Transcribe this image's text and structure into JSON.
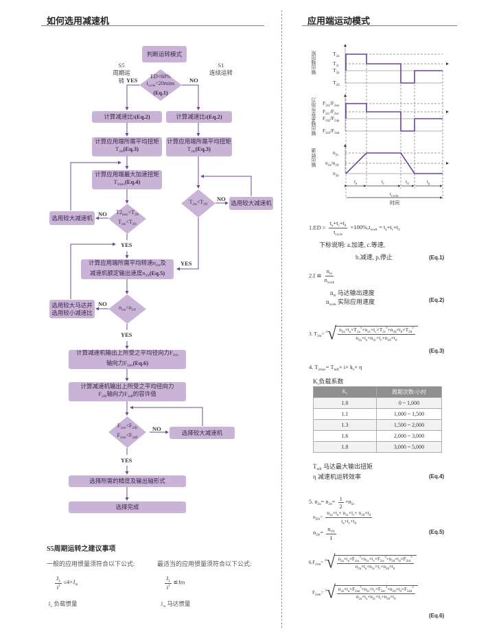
{
  "left": {
    "title": "如何选用减速机",
    "flow": {
      "start": "判断运转模式",
      "s5": "S5",
      "s5_label": "周期运转",
      "s1": "S1",
      "s1_label": "连续运转",
      "yes": "YES",
      "no": "NO",
      "d1": [
        [
          "ED<60%"
        ],
        [
          "t",
          {
            "sub": "cycle"
          },
          "<20mins"
        ],
        [
          {
            "b": "(Eq.1)"
          }
        ]
      ],
      "ratio_left": [
        "计算减速比i",
        {
          "b": "(Eq.2)"
        }
      ],
      "ratio_right": [
        "计算减速比i",
        {
          "b": "(Eq.2)"
        }
      ],
      "torque_left": [
        [
          "计算应用端所需平均扭矩"
        ],
        [
          "T",
          {
            "sub": "2m"
          },
          {
            "b": "(Eq.3)"
          }
        ]
      ],
      "torque_right": [
        [
          "计算应用端所需平均扭矩"
        ],
        [
          "T",
          {
            "sub": "2m"
          },
          {
            "b": "(Eq.3)"
          }
        ]
      ],
      "max_torque": [
        [
          "计算应用端最大加速扭矩"
        ],
        [
          "T",
          {
            "sub": "2max"
          },
          {
            "b": "(Eq.4)"
          }
        ]
      ],
      "d2": [
        [
          "T2",
          {
            "sub": "max"
          },
          "<T",
          {
            "sub": "2B"
          }
        ],
        [
          "T",
          {
            "sub": "2m"
          },
          "<T",
          {
            "sub": "2N"
          }
        ]
      ],
      "bigger_reducer": "选用较大减速机",
      "d_right": [
        [
          "T",
          {
            "sub": "2m"
          },
          "<T",
          {
            "sub": "2N"
          }
        ]
      ],
      "bigger_reducer_right": "选用较大减速机",
      "speed": [
        [
          "计算应用端所需平均转速n",
          {
            "sub": "2m"
          },
          "及"
        ],
        [
          "减速机额定输出速度n",
          {
            "sub": "2N"
          },
          {
            "b": "(Eq.5)"
          }
        ]
      ],
      "d3": [
        [
          "n",
          {
            "sub": "2m"
          },
          "<n",
          {
            "sub": "2N"
          }
        ]
      ],
      "bigger_motor": [
        [
          "选用较大马达并"
        ],
        [
          "选用较小减速比"
        ]
      ],
      "force": [
        [
          "计算减速机输出上所受之平均径向力F",
          {
            "sub": "2rm"
          }
        ],
        [
          "轴向力F",
          {
            "sub": "2am"
          },
          {
            "b": "(Eq.6)"
          }
        ]
      ],
      "allow": [
        [
          "计算减速机输出上所受之平均径向力"
        ],
        [
          "F",
          {
            "sub": "2rB"
          },
          "轴向力F",
          {
            "sub": "2aB"
          },
          "的容许值"
        ]
      ],
      "d4": [
        [
          "F",
          {
            "sub": "2rm"
          },
          "<F",
          {
            "sub": "2rB"
          }
        ],
        [
          "F",
          {
            "sub": "2am"
          },
          "<F",
          {
            "sub": "2aB"
          }
        ]
      ],
      "choose_bigger": "选择较大减速机",
      "precision": "选择所需的精度及输出轴形式",
      "done": "选择完成"
    },
    "s5": {
      "title": "S5周期运转之建议事项",
      "general": "一般的应用惯量须符合以下公式:",
      "optimal": "最适当的应用惯量须符合以下公式:",
      "f1_num": [
        "J",
        {
          "sub": "L"
        }
      ],
      "f1_den": [
        "i",
        {
          "sup": "2"
        }
      ],
      "f1_rest": [
        "≤4×J",
        {
          "sub": "m"
        }
      ],
      "f2_num": [
        "J",
        {
          "sub": "L"
        }
      ],
      "f2_den": [
        "i",
        {
          "sup": "2"
        }
      ],
      "f2_rest": [
        "≌Jm"
      ],
      "jl": [
        "J",
        {
          "sub": "L"
        },
        "  负载惯量"
      ],
      "jm": [
        "J",
        {
          "sub": "m"
        },
        "  马达惯量"
      ]
    }
  },
  "right": {
    "title": "应用端运动模式",
    "diagram": {
      "axis_torque": "输出轴扭矩",
      "axis_force": "输出轴承受作用力",
      "axis_speed": "输出转速",
      "t_levels": [
        [
          "T",
          {
            "sub": "2a"
          }
        ],
        [
          "T",
          {
            "sub": "2c"
          }
        ],
        [
          "T",
          {
            "sub": "2p"
          }
        ],
        [
          "T",
          {
            "sub": "2d"
          }
        ]
      ],
      "f_levels": [
        [
          "F",
          {
            "sub": "2ra"
          },
          "/F",
          {
            "sub": "2aa"
          }
        ],
        [
          "F",
          {
            "sub": "2rc"
          },
          "/F",
          {
            "sub": "2ac"
          }
        ],
        [
          "F",
          {
            "sub": "2rp"
          },
          "/F",
          {
            "sub": "2ap"
          }
        ],
        [
          "F",
          {
            "sub": "2rd"
          },
          "/F",
          {
            "sub": "2ad"
          }
        ]
      ],
      "n_levels": [
        [
          "n",
          {
            "sub": "2c"
          }
        ],
        [
          "n",
          {
            "sub": "2a"
          },
          "/n",
          {
            "sub": "2d"
          }
        ],
        [
          "n",
          {
            "sub": "2p"
          }
        ]
      ],
      "phases": [
        [
          "t",
          {
            "sub": "a"
          }
        ],
        [
          "t",
          {
            "sub": "c"
          }
        ],
        [
          "t",
          {
            "sub": "d"
          }
        ],
        [
          "t",
          {
            "sub": "p"
          }
        ]
      ],
      "cycle": [
        "t",
        {
          "sub": "cycle"
        }
      ],
      "time": "时间",
      "line_color": "#6a3fa0"
    },
    "eq1": {
      "pre": "1.ED = ",
      "num": [
        "t",
        {
          "sub": "a"
        },
        "+t",
        {
          "sub": "c"
        },
        "+t",
        {
          "sub": "d"
        }
      ],
      "den": [
        "t",
        {
          "sub": "cycle"
        }
      ],
      "post": [
        " ×100%,t",
        {
          "sub": "work"
        },
        " = t",
        {
          "sub": "a"
        },
        "+t",
        {
          "sub": "c"
        },
        "+t",
        {
          "sub": "d"
        }
      ],
      "note1": "下标说明: a.加速, c.等速,",
      "note2": "b.减速, p.停止",
      "tag": "(Eq.1)"
    },
    "eq2": {
      "pre": "2.I  ≌",
      "num": [
        "n",
        {
          "sub": "m"
        }
      ],
      "den": [
        "n",
        {
          "sub": "work"
        }
      ],
      "l1": [
        "n",
        {
          "sub": "m"
        },
        "  马达输出速度"
      ],
      "l2": [
        "n",
        {
          "sub": "work"
        },
        "  实际应用速度"
      ],
      "tag": "(Eq.2)"
    },
    "eq3": {
      "pre": [
        "3. T",
        {
          "sub": "2m"
        },
        "= ",
        {
          "sup": "3"
        }
      ],
      "num": [
        "n",
        {
          "sub": "2a"
        },
        "×t",
        {
          "sub": "a"
        },
        "×T",
        {
          "sub": "2a"
        },
        {
          "sup": "3"
        },
        "+n",
        {
          "sub": "2c"
        },
        "×t",
        {
          "sub": "c"
        },
        "×T",
        {
          "sub": "2c"
        },
        {
          "sup": "3"
        },
        "+n",
        {
          "sub": "2d"
        },
        "×t",
        {
          "sub": "d"
        },
        "×T",
        {
          "sub": "2d"
        },
        {
          "sup": "3"
        }
      ],
      "den": [
        "n",
        {
          "sub": "2a"
        },
        "×t",
        {
          "sub": "a"
        },
        "+n",
        {
          "sub": "2c"
        },
        "×t",
        {
          "sub": "c"
        },
        "+n",
        {
          "sub": "2d"
        },
        "×t",
        {
          "sub": "d"
        }
      ],
      "tag": "(Eq.3)"
    },
    "eq4": {
      "line": [
        "4. T",
        {
          "sub": "2max"
        },
        "= T",
        {
          "sub": "mB"
        },
        "× i× k",
        {
          "sub": "s"
        },
        "×  η"
      ],
      "table_caption": [
        "K",
        {
          "sub": "s"
        },
        "负载系数"
      ],
      "table_headers": [
        [
          "K",
          {
            "sub": "s"
          }
        ],
        [
          "周期次数/小时"
        ]
      ],
      "table_rows": [
        [
          "1.0",
          "0 ~ 1,000"
        ],
        [
          "1.1",
          "1,000  ~ 1,500"
        ],
        [
          "1.3",
          "1,500  ~ 2,000"
        ],
        [
          "1.6",
          "2,000 ~ 3,000"
        ],
        [
          "1.8",
          "3,000  ~ 5,000"
        ]
      ],
      "l1": [
        "T",
        {
          "sub": "mB"
        },
        "  马达最大输出扭矩"
      ],
      "l2": [
        "η    减速机运转效率"
      ],
      "tag": "(Eq.4)"
    },
    "eq5": {
      "l1_pre": [
        "5. n",
        {
          "sub": "2a"
        },
        "= n",
        {
          "sub": "2d"
        },
        "= "
      ],
      "l1_num": [
        "1"
      ],
      "l1_den": [
        "2"
      ],
      "l1_post": [
        "×n",
        {
          "sub": "2c"
        }
      ],
      "l2_pre": [
        "n",
        {
          "sub": "2m"
        },
        "= "
      ],
      "l2_num": [
        "n",
        {
          "sub": "2a"
        },
        "×t",
        {
          "sub": "a"
        },
        "+ n",
        {
          "sub": "2c"
        },
        "×t",
        {
          "sub": "c"
        },
        "+ n",
        {
          "sub": "2d"
        },
        "×t",
        {
          "sub": "d"
        }
      ],
      "l2_den": [
        "t",
        {
          "sub": "a"
        },
        "+t",
        {
          "sub": "c"
        },
        "+t",
        {
          "sub": "d"
        }
      ],
      "l3_pre": [
        "n",
        {
          "sub": "2N"
        },
        "= "
      ],
      "l3_num": [
        "n",
        {
          "sub": "1N"
        }
      ],
      "l3_den": [
        "I"
      ],
      "tag": "(Eq.5)"
    },
    "eq6": {
      "l1_pre": [
        "6.F",
        {
          "sub": "2rm"
        },
        "= ",
        {
          "sup": "3"
        }
      ],
      "l1_num": [
        "n",
        {
          "sub": "2a"
        },
        "×t",
        {
          "sub": "a"
        },
        "×F",
        {
          "sub": "2ra"
        },
        {
          "sup": "3"
        },
        "+n",
        {
          "sub": "2c"
        },
        "×t",
        {
          "sub": "c"
        },
        "×F",
        {
          "sub": "2rc"
        },
        {
          "sup": "3"
        },
        "+n",
        {
          "sub": "2d"
        },
        "×t",
        {
          "sub": "d"
        },
        "×F",
        {
          "sub": "2rd"
        },
        {
          "sup": "3"
        }
      ],
      "l1_den": [
        "n",
        {
          "sub": "2a"
        },
        "×t",
        {
          "sub": "a"
        },
        "+n",
        {
          "sub": "2c"
        },
        "×t",
        {
          "sub": "c"
        },
        "+n",
        {
          "sub": "2d"
        },
        "×t",
        {
          "sub": "d"
        }
      ],
      "l2_pre": [
        "F",
        {
          "sub": "2am"
        },
        "= ",
        {
          "sup": "3"
        }
      ],
      "l2_num": [
        "n",
        {
          "sub": "2a"
        },
        "×t",
        {
          "sub": "a"
        },
        "×F",
        {
          "sub": "2aa"
        },
        {
          "sup": "3"
        },
        "+n",
        {
          "sub": "2c"
        },
        "×t",
        {
          "sub": "c"
        },
        "×F",
        {
          "sub": "2ac"
        },
        {
          "sup": "3"
        },
        "+n",
        {
          "sub": "2d"
        },
        "×t",
        {
          "sub": "d"
        },
        "×F",
        {
          "sub": "2ad"
        },
        {
          "sup": "3"
        }
      ],
      "l2_den": [
        "n",
        {
          "sub": "2a"
        },
        "×t",
        {
          "sub": "a"
        },
        "+n",
        {
          "sub": "2c"
        },
        "×t",
        {
          "sub": "c"
        },
        "+n",
        {
          "sub": "2d"
        },
        "×t",
        {
          "sub": "d"
        }
      ],
      "tag": "(Eq.6)"
    }
  }
}
